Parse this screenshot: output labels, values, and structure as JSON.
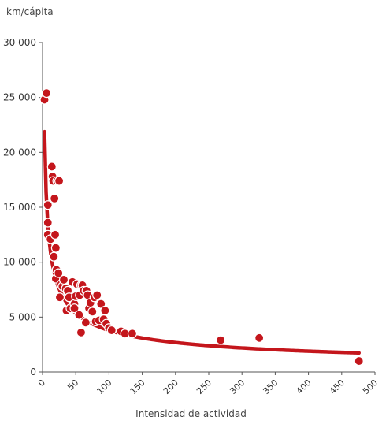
{
  "chart_data": {
    "type": "scatter",
    "title": "",
    "ylabel": "km/cápita",
    "xlabel": "Intensidad de actividad",
    "xlim": [
      0,
      500
    ],
    "ylim": [
      0,
      30000
    ],
    "x_ticks": [
      0,
      50,
      100,
      150,
      200,
      250,
      300,
      350,
      400,
      450,
      500
    ],
    "x_tick_labels": [
      "0",
      "50",
      "100",
      "150",
      "200",
      "250",
      "300",
      "350",
      "400",
      "450",
      "500"
    ],
    "y_ticks": [
      0,
      5000,
      10000,
      15000,
      20000,
      25000,
      30000
    ],
    "y_tick_labels": [
      "0",
      "5 000",
      "10 000",
      "15 000",
      "20 000",
      "25 000",
      "30 000"
    ],
    "grid": false,
    "colors": {
      "points": "#c4161c",
      "trend": "#c4161c",
      "axis": "#555555"
    },
    "series": [
      {
        "kind": "points",
        "x": [
          3,
          6,
          8,
          8,
          8,
          12,
          14,
          15,
          16,
          17,
          18,
          19,
          20,
          20,
          21,
          22,
          24,
          25,
          26,
          28,
          30,
          32,
          35,
          36,
          38,
          40,
          42,
          45,
          48,
          48,
          50,
          52,
          55,
          56,
          58,
          58,
          60,
          62,
          65,
          66,
          68,
          70,
          72,
          75,
          78,
          80,
          82,
          85,
          88,
          92,
          94,
          96,
          100,
          104,
          118,
          124,
          135,
          268,
          326,
          476
        ],
        "y": [
          24800,
          25400,
          15200,
          13600,
          12500,
          12100,
          18700,
          17800,
          17400,
          10500,
          15800,
          12500,
          11300,
          8500,
          9300,
          17400,
          9000,
          17400,
          6800,
          8000,
          7800,
          8400,
          7600,
          5600,
          7400,
          6800,
          5800,
          8200,
          6200,
          5800,
          6900,
          8000,
          5200,
          7000,
          3600,
          7900,
          7900,
          7400,
          4500,
          7400,
          7000,
          5800,
          6300,
          5500,
          6800,
          4600,
          7000,
          4700,
          6200,
          4800,
          5600,
          4400,
          4000,
          3800,
          3700,
          3500,
          3500,
          2900,
          3100,
          1000
        ]
      },
      {
        "kind": "trendline",
        "form": "power",
        "x_range": [
          3,
          476
        ],
        "a": 37900,
        "b": -0.5
      }
    ]
  }
}
